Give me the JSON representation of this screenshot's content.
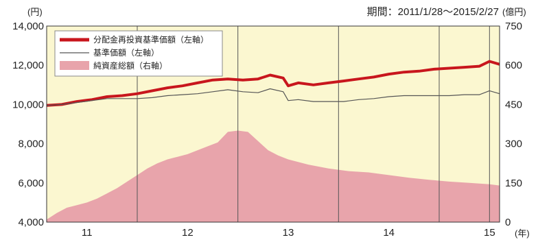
{
  "period_label": "期間：2011/1/28〜2015/2/27",
  "chart_data": {
    "type": "line",
    "left_axis": {
      "unit": "(円)",
      "ylim": [
        4000,
        14000
      ],
      "ticks": [
        4000,
        6000,
        8000,
        10000,
        12000,
        14000
      ],
      "tick_labels": [
        "4,000",
        "6,000",
        "8,000",
        "10,000",
        "12,000",
        "14,000"
      ]
    },
    "right_axis": {
      "unit": "(億円)",
      "ylim": [
        0,
        750
      ],
      "ticks": [
        0,
        150,
        300,
        450,
        600,
        750
      ],
      "tick_labels": [
        "0",
        "150",
        "300",
        "450",
        "600",
        "750"
      ]
    },
    "x_axis": {
      "unit": "(年)",
      "xlim": [
        2010.6,
        2015.1
      ],
      "year_ticks": [
        {
          "label": "11",
          "at": 2011.0
        },
        {
          "label": "12",
          "at": 2012.0
        },
        {
          "label": "13",
          "at": 2013.0
        },
        {
          "label": "14",
          "at": 2014.0
        },
        {
          "label": "15",
          "at": 2015.0
        }
      ],
      "gridlines": [
        2011.5,
        2012.5,
        2013.5,
        2014.5,
        2015.0
      ]
    },
    "grid": false,
    "legend_position": "top-left",
    "colors": {
      "plot_bg": "#fbf7d0",
      "nav_reinvested": "#c8161d",
      "nav": "#555555",
      "net_assets": "#e8a4ab",
      "gridline": "#555555"
    },
    "series": [
      {
        "name": "分配金再投資基準価額（左軸）",
        "axis": "left",
        "style": "thick-line",
        "x": [
          2010.6,
          2010.75,
          2010.9,
          2011.05,
          2011.2,
          2011.35,
          2011.5,
          2011.65,
          2011.8,
          2011.95,
          2012.1,
          2012.25,
          2012.4,
          2012.55,
          2012.7,
          2012.82,
          2012.95,
          2013.0,
          2013.1,
          2013.25,
          2013.4,
          2013.55,
          2013.7,
          2013.85,
          2014.0,
          2014.15,
          2014.3,
          2014.45,
          2014.6,
          2014.75,
          2014.9,
          2015.0,
          2015.1
        ],
        "values": [
          9950,
          10000,
          10150,
          10250,
          10400,
          10450,
          10550,
          10700,
          10850,
          10950,
          11100,
          11250,
          11300,
          11250,
          11300,
          11500,
          11350,
          10950,
          11100,
          11000,
          11100,
          11200,
          11300,
          11400,
          11550,
          11650,
          11700,
          11800,
          11850,
          11900,
          11950,
          12200,
          12050
        ]
      },
      {
        "name": "基準価額（左軸）",
        "axis": "left",
        "style": "thin-line",
        "x": [
          2010.6,
          2010.75,
          2010.9,
          2011.05,
          2011.2,
          2011.35,
          2011.5,
          2011.65,
          2011.8,
          2011.95,
          2012.1,
          2012.25,
          2012.4,
          2012.55,
          2012.7,
          2012.82,
          2012.95,
          2013.0,
          2013.1,
          2013.25,
          2013.4,
          2013.55,
          2013.7,
          2013.85,
          2014.0,
          2014.15,
          2014.3,
          2014.45,
          2014.6,
          2014.75,
          2014.9,
          2015.0,
          2015.1
        ],
        "values": [
          9950,
          10000,
          10100,
          10200,
          10300,
          10300,
          10300,
          10350,
          10450,
          10500,
          10550,
          10650,
          10750,
          10650,
          10600,
          10800,
          10650,
          10200,
          10250,
          10150,
          10150,
          10150,
          10250,
          10300,
          10400,
          10450,
          10450,
          10450,
          10450,
          10500,
          10500,
          10700,
          10550
        ]
      },
      {
        "name": "純資産総額（右軸）",
        "axis": "right",
        "style": "area",
        "x": [
          2010.6,
          2010.7,
          2010.8,
          2010.9,
          2011.0,
          2011.1,
          2011.2,
          2011.3,
          2011.4,
          2011.5,
          2011.6,
          2011.7,
          2011.8,
          2011.9,
          2012.0,
          2012.1,
          2012.2,
          2012.3,
          2012.4,
          2012.5,
          2012.6,
          2012.7,
          2012.8,
          2012.9,
          2013.0,
          2013.2,
          2013.4,
          2013.6,
          2013.8,
          2014.0,
          2014.2,
          2014.4,
          2014.6,
          2014.8,
          2015.0,
          2015.1
        ],
        "values": [
          10,
          35,
          55,
          65,
          75,
          90,
          110,
          130,
          155,
          180,
          205,
          225,
          240,
          250,
          260,
          275,
          290,
          305,
          345,
          350,
          345,
          310,
          275,
          255,
          240,
          220,
          205,
          195,
          190,
          180,
          170,
          162,
          155,
          150,
          145,
          140
        ]
      }
    ]
  }
}
